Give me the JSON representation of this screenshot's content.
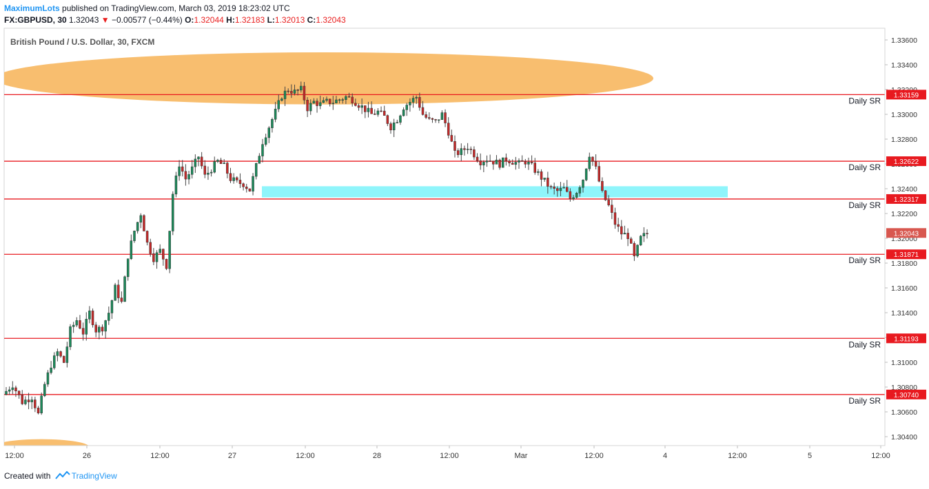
{
  "header": {
    "author": "MaximumLots",
    "published_text": "published on TradingView.com, March 03, 2019 18:23:02 UTC",
    "symbol": "FX:GBPUSD, 30",
    "last": "1.32043",
    "change": "−0.00577 (−0.44%)",
    "o_label": "O:",
    "o_value": "1.32044",
    "h_label": "H:",
    "h_value": "1.32183",
    "l_label": "L:",
    "l_value": "1.32013",
    "c_label": "C:",
    "c_value": "1.32043"
  },
  "footer": {
    "created_with": "Created with",
    "brand": "TradingView"
  },
  "colors": {
    "up": "#1b8a5a",
    "down": "#c62828",
    "sr_line": "#e8191f",
    "zone_orange": "#f8be6f",
    "zone_cyan": "#8ff5fb",
    "last_price_tag": "#d8574f"
  },
  "chart_data": {
    "type": "candlestick",
    "title": "British Pound / U.S. Dollar, 30, FXCM",
    "y_ticks": [
      "1.33600",
      "1.33400",
      "1.33200",
      "1.33000",
      "1.32800",
      "1.32600",
      "1.32400",
      "1.32200",
      "1.32000",
      "1.31800",
      "1.31600",
      "1.31400",
      "1.31200",
      "1.31000",
      "1.30800",
      "1.30600",
      "1.30400"
    ],
    "ylim": [
      1.303,
      1.3365
    ],
    "x_ticks": [
      "12:00",
      "26",
      "12:00",
      "27",
      "12:00",
      "28",
      "12:00",
      "Mar",
      "12:00",
      "4",
      "12:00",
      "5",
      "12:00"
    ],
    "last_price": "1.32043",
    "sr_levels": [
      {
        "value": 1.33159,
        "label": "1.33159",
        "text": "Daily SR"
      },
      {
        "value": 1.32622,
        "label": "1.32622",
        "text": "Daily SR"
      },
      {
        "value": 1.32317,
        "label": "1.32317",
        "text": "Daily SR"
      },
      {
        "value": 1.31871,
        "label": "1.31871",
        "text": "Daily SR"
      },
      {
        "value": 1.31193,
        "label": "1.31193",
        "text": "Daily SR"
      },
      {
        "value": 1.3074,
        "label": "1.30740",
        "text": "Daily SR"
      }
    ],
    "zones": [
      {
        "kind": "ellipse",
        "color": "orange",
        "from": 1.3308,
        "to": 1.335
      },
      {
        "kind": "rect",
        "color": "cyan",
        "from": 1.3233,
        "to": 1.3242
      },
      {
        "kind": "ellipse",
        "color": "orange",
        "from": 1.3025,
        "to": 1.3038
      }
    ],
    "path": [
      [
        0,
        1.3074
      ],
      [
        3,
        1.3082
      ],
      [
        6,
        1.3068
      ],
      [
        9,
        1.3072
      ],
      [
        11,
        1.3058
      ],
      [
        13,
        1.3082
      ],
      [
        15,
        1.3098
      ],
      [
        17,
        1.3108
      ],
      [
        19,
        1.31
      ],
      [
        21,
        1.3126
      ],
      [
        23,
        1.3134
      ],
      [
        25,
        1.3124
      ],
      [
        27,
        1.314
      ],
      [
        29,
        1.3126
      ],
      [
        31,
        1.3128
      ],
      [
        33,
        1.314
      ],
      [
        35,
        1.316
      ],
      [
        37,
        1.3148
      ],
      [
        39,
        1.3186
      ],
      [
        41,
        1.3206
      ],
      [
        43,
        1.322
      ],
      [
        45,
        1.3196
      ],
      [
        47,
        1.3184
      ],
      [
        49,
        1.319
      ],
      [
        51,
        1.3178
      ],
      [
        53,
        1.3236
      ],
      [
        55,
        1.326
      ],
      [
        57,
        1.3248
      ],
      [
        59,
        1.3256
      ],
      [
        61,
        1.3266
      ],
      [
        63,
        1.325
      ],
      [
        65,
        1.3256
      ],
      [
        67,
        1.3262
      ],
      [
        69,
        1.3258
      ],
      [
        71,
        1.3248
      ],
      [
        73,
        1.3245
      ],
      [
        75,
        1.3244
      ],
      [
        77,
        1.3239
      ],
      [
        79,
        1.3258
      ],
      [
        81,
        1.3278
      ],
      [
        83,
        1.329
      ],
      [
        85,
        1.3302
      ],
      [
        87,
        1.3315
      ],
      [
        89,
        1.332
      ],
      [
        91,
        1.3318
      ],
      [
        93,
        1.332
      ],
      [
        95,
        1.3305
      ],
      [
        97,
        1.331
      ],
      [
        99,
        1.3308
      ],
      [
        101,
        1.331
      ],
      [
        103,
        1.331
      ],
      [
        105,
        1.3312
      ],
      [
        107,
        1.3314
      ],
      [
        109,
        1.3312
      ],
      [
        111,
        1.3308
      ],
      [
        113,
        1.3304
      ],
      [
        115,
        1.33
      ],
      [
        117,
        1.3302
      ],
      [
        119,
        1.3298
      ],
      [
        121,
        1.329
      ],
      [
        123,
        1.3296
      ],
      [
        125,
        1.3306
      ],
      [
        127,
        1.331
      ],
      [
        129,
        1.3314
      ],
      [
        131,
        1.33
      ],
      [
        133,
        1.3295
      ],
      [
        135,
        1.3294
      ],
      [
        137,
        1.33
      ],
      [
        139,
        1.3286
      ],
      [
        141,
        1.3268
      ],
      [
        143,
        1.327
      ],
      [
        145,
        1.3274
      ],
      [
        147,
        1.3268
      ],
      [
        149,
        1.3262
      ],
      [
        151,
        1.3264
      ],
      [
        153,
        1.3262
      ],
      [
        155,
        1.326
      ],
      [
        157,
        1.3264
      ],
      [
        159,
        1.3262
      ],
      [
        161,
        1.326
      ],
      [
        163,
        1.3262
      ],
      [
        165,
        1.3258
      ],
      [
        167,
        1.3252
      ],
      [
        169,
        1.3246
      ],
      [
        171,
        1.324
      ],
      [
        173,
        1.3238
      ],
      [
        175,
        1.324
      ],
      [
        177,
        1.3232
      ],
      [
        179,
        1.3238
      ],
      [
        181,
        1.3248
      ],
      [
        183,
        1.3268
      ],
      [
        185,
        1.3256
      ],
      [
        187,
        1.3236
      ],
      [
        189,
        1.3226
      ],
      [
        191,
        1.3212
      ],
      [
        193,
        1.3204
      ],
      [
        195,
        1.3202
      ],
      [
        197,
        1.3184
      ],
      [
        199,
        1.32
      ],
      [
        201,
        1.3204
      ]
    ]
  }
}
